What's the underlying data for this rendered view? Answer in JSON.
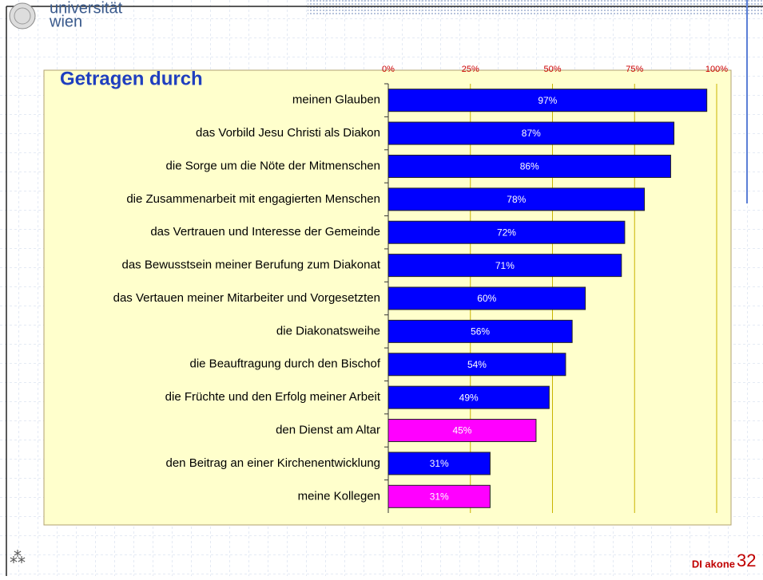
{
  "header": {
    "logo_line1": "universität",
    "logo_line2": "wien"
  },
  "footer": {
    "brand": "DI akone",
    "page": "32"
  },
  "chart_data": {
    "type": "bar",
    "orientation": "horizontal",
    "title": "Getragen durch",
    "categories": [
      "meinen Glauben",
      "das Vorbild Jesu Christi als Diakon",
      "die Sorge um die Nöte der Mitmenschen",
      "die Zusammenarbeit mit engagierten Menschen",
      "das Vertrauen und Interesse der Gemeinde",
      "das Bewusstsein meiner Berufung zum Diakonat",
      "das Vertauen meiner Mitarbeiter und Vorgesetzten",
      "die Diakonatsweihe",
      "die Beauftragung durch den Bischof",
      "die Früchte und den Erfolg meiner Arbeit",
      "den Dienst am Altar",
      "den Beitrag an einer Kirchenentwicklung",
      "meine Kollegen"
    ],
    "values": [
      97,
      87,
      86,
      78,
      72,
      71,
      60,
      56,
      54,
      49,
      45,
      31,
      31
    ],
    "value_labels": [
      "97%",
      "87%",
      "86%",
      "78%",
      "72%",
      "71%",
      "60%",
      "56%",
      "54%",
      "49%",
      "45%",
      "31%",
      "31%"
    ],
    "colors": [
      "#0000ff",
      "#0000ff",
      "#0000ff",
      "#0000ff",
      "#0000ff",
      "#0000ff",
      "#0000ff",
      "#0000ff",
      "#0000ff",
      "#0000ff",
      "#ff00ff",
      "#0000ff",
      "#ff00ff"
    ],
    "xlim": [
      0,
      100
    ],
    "xticks": [
      {
        "value": 0,
        "label": "0%"
      },
      {
        "value": 25,
        "label": "25%"
      },
      {
        "value": 50,
        "label": "50%"
      },
      {
        "value": 75,
        "label": "75%"
      },
      {
        "value": 100,
        "label": "100%"
      }
    ],
    "grid": true
  }
}
